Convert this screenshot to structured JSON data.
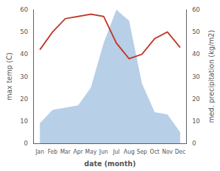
{
  "chart_data": {
    "type": "line",
    "categories": [
      "Jan",
      "Feb",
      "Mar",
      "Apr",
      "May",
      "Jun",
      "Jul",
      "Aug",
      "Sep",
      "Oct",
      "Nov",
      "Dec"
    ],
    "xlabel": "date (month)",
    "ylabel": "max temp (C)",
    "y2label": "med. precipitation (kg/m2)",
    "series": [
      {
        "type": "line",
        "color": "#c0392b",
        "values": [
          42,
          50,
          56,
          57,
          58,
          57,
          45,
          38,
          40,
          47,
          50,
          43
        ]
      },
      {
        "type": "area",
        "color": "#b8cfe8",
        "axis": "y2",
        "values": [
          9,
          15,
          16,
          17,
          25,
          45,
          60,
          55,
          27,
          14,
          13,
          5
        ]
      }
    ],
    "ylim": [
      0,
      60
    ],
    "yticks": [
      0,
      10,
      20,
      30,
      40,
      50,
      60
    ],
    "y2lim": [
      0,
      60
    ],
    "y2ticks": [
      0,
      10,
      20,
      30,
      40,
      50,
      60
    ],
    "grid": false
  }
}
